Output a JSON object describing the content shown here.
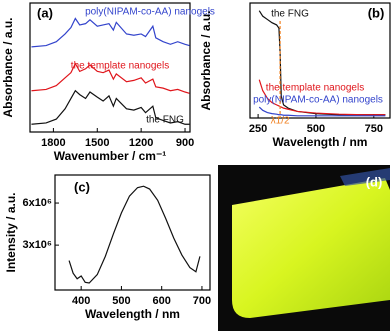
{
  "chart_data": [
    {
      "type": "line",
      "panel_label": "(a)",
      "xlabel": "Wavenumber / cm⁻¹",
      "ylabel": "Absorbance / a.u.",
      "x": [
        1950,
        1850,
        1780,
        1720,
        1680,
        1650,
        1620,
        1580,
        1550,
        1500,
        1460,
        1420,
        1390,
        1370,
        1300,
        1250,
        1200,
        1170,
        1120,
        1100,
        1050,
        1000,
        950,
        900,
        870
      ],
      "series": [
        {
          "name": "poly(NIPAM-co-AA) nanogels",
          "color": "#3344cc",
          "values": [
            6.6,
            6.7,
            7.0,
            7.6,
            8.1,
            8.8,
            8.3,
            8.4,
            8.7,
            8.2,
            8.3,
            8.4,
            7.9,
            8.5,
            7.6,
            7.5,
            7.6,
            7.4,
            8.2,
            7.3,
            7.0,
            6.8,
            7.0,
            6.8,
            6.7
          ]
        },
        {
          "name": "the template nanogels",
          "color": "#e0151b",
          "values": [
            3.2,
            3.3,
            3.6,
            4.2,
            4.6,
            5.3,
            4.7,
            4.9,
            5.2,
            4.7,
            4.6,
            4.8,
            4.1,
            4.5,
            3.9,
            4.0,
            4.2,
            3.8,
            4.1,
            3.5,
            3.4,
            3.2,
            3.3,
            3.1,
            3.0
          ]
        },
        {
          "name": "the FNG",
          "color": "#111111",
          "values": [
            0.6,
            0.7,
            1.0,
            1.8,
            2.6,
            3.2,
            2.9,
            2.6,
            3.1,
            2.7,
            2.4,
            2.8,
            2.0,
            2.6,
            1.8,
            1.7,
            1.9,
            1.5,
            2.0,
            1.1,
            0.9,
            0.7,
            0.8,
            0.6,
            0.6
          ]
        }
      ],
      "xlim": [
        1960,
        866
      ],
      "xticks": [
        1800,
        1500,
        1200,
        900
      ],
      "ylim": [
        0,
        10
      ]
    },
    {
      "type": "line",
      "panel_label": "(b)",
      "xlabel": "Wavelength / nm",
      "ylabel": "Absorbance / a.u.",
      "x": [
        255,
        270,
        290,
        310,
        330,
        340,
        345,
        350,
        360,
        380,
        420,
        500,
        600,
        700,
        800
      ],
      "series": [
        {
          "name": "the FNG",
          "color": "#111111",
          "values": [
            9.8,
            9.3,
            9.0,
            8.7,
            8.5,
            8.2,
            6.0,
            2.0,
            1.2,
            0.9,
            0.6,
            0.4,
            0.3,
            0.3,
            0.3
          ]
        },
        {
          "name": "the template nanogels",
          "color": "#e0151b",
          "values": [
            3.5,
            2.5,
            1.8,
            1.4,
            1.2,
            1.1,
            1.05,
            1.0,
            0.9,
            0.8,
            0.6,
            0.45,
            0.35,
            0.3,
            0.3
          ]
        },
        {
          "name": "poly(NIPAM-co-AA) nanogels",
          "color": "#3344cc",
          "values": [
            1.0,
            0.7,
            0.5,
            0.4,
            0.35,
            0.3,
            0.3,
            0.3,
            0.25,
            0.25,
            0.2,
            0.2,
            0.2,
            0.2,
            0.2
          ]
        }
      ],
      "annotation": {
        "x": 345,
        "label": "λ1/2",
        "color": "#f08020"
      },
      "xlim": [
        215,
        820
      ],
      "xticks": [
        250,
        500,
        750
      ],
      "ylim": [
        0,
        10.5
      ]
    },
    {
      "type": "line",
      "panel_label": "(c)",
      "xlabel": "Wavelength / nm",
      "ylabel": "Intensity / a.u.",
      "x": [
        370,
        380,
        390,
        400,
        410,
        420,
        440,
        460,
        480,
        500,
        520,
        540,
        555,
        570,
        590,
        610,
        630,
        650,
        670,
        685,
        695
      ],
      "values": [
        1900000,
        1000000,
        600000,
        800000,
        350000,
        300000,
        900000,
        2200000,
        3800000,
        5300000,
        6500000,
        7100000,
        7200000,
        7000000,
        6200000,
        4900000,
        3500000,
        2300000,
        1400000,
        1100000,
        2200000
      ],
      "color": "#111111",
      "xlim": [
        335,
        720
      ],
      "xticks": [
        400,
        500,
        600,
        700
      ],
      "ylim": [
        -200000,
        8000000
      ],
      "yticks": [
        {
          "value": 3000000,
          "label": "3x10⁶"
        },
        {
          "value": 6000000,
          "label": "6x10⁶"
        }
      ]
    }
  ],
  "photo": {
    "panel_label": "(d)"
  }
}
